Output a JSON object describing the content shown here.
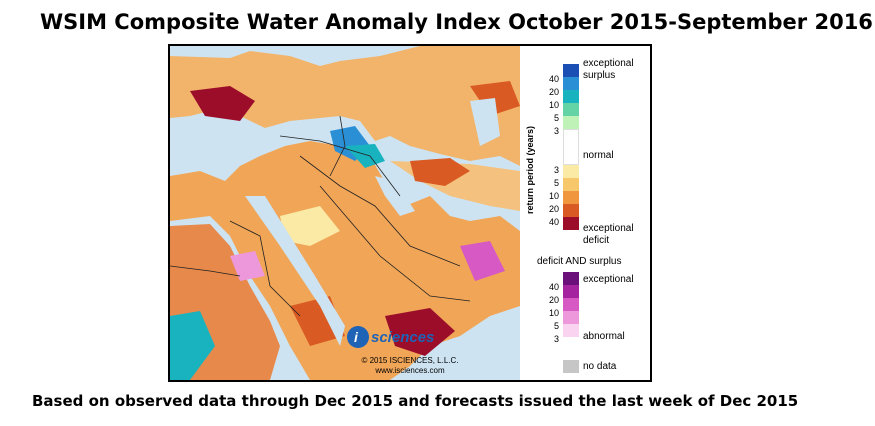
{
  "title": "WSIM Composite Water Anomaly Index October 2015-September 2016",
  "footer": "Based on observed data through Dec 2015 and forecasts issued the last week of Dec 2015",
  "map": {
    "logo_text": "sciences",
    "logo_letter": "i",
    "copyright": "© 2015 ISCIENCES, L.L.C.",
    "website": "www.isciences.com"
  },
  "legend": {
    "axis_label": "return period (years)",
    "surplus_label_1": "exceptional",
    "surplus_label_2": "surplus",
    "normal_label": "normal",
    "deficit_label_1": "exceptional",
    "deficit_label_2": "deficit",
    "both_title": "deficit AND surplus",
    "both_top_label": "exceptional",
    "both_bottom_label": "abnormal",
    "nodata_label": "no data",
    "surplus_ticks": [
      "40",
      "20",
      "10",
      "5",
      "3"
    ],
    "deficit_ticks": [
      "3",
      "5",
      "10",
      "20",
      "40"
    ],
    "both_ticks": [
      "40",
      "20",
      "10",
      "5",
      "3"
    ],
    "colors": {
      "surplus": [
        "#1b4fb3",
        "#2b8fd6",
        "#19b3bf",
        "#64d4a6",
        "#bff2b6"
      ],
      "normal": "#ffffff",
      "deficit": [
        "#fbe9a6",
        "#f7c86b",
        "#f0963f",
        "#d95a23",
        "#9c0d2a"
      ],
      "both": [
        "#6b0f7a",
        "#a5239e",
        "#d659c4",
        "#ee98dc",
        "#fad3f1"
      ],
      "nodata": "#c6c6c6",
      "water": "#cde3f2"
    }
  }
}
